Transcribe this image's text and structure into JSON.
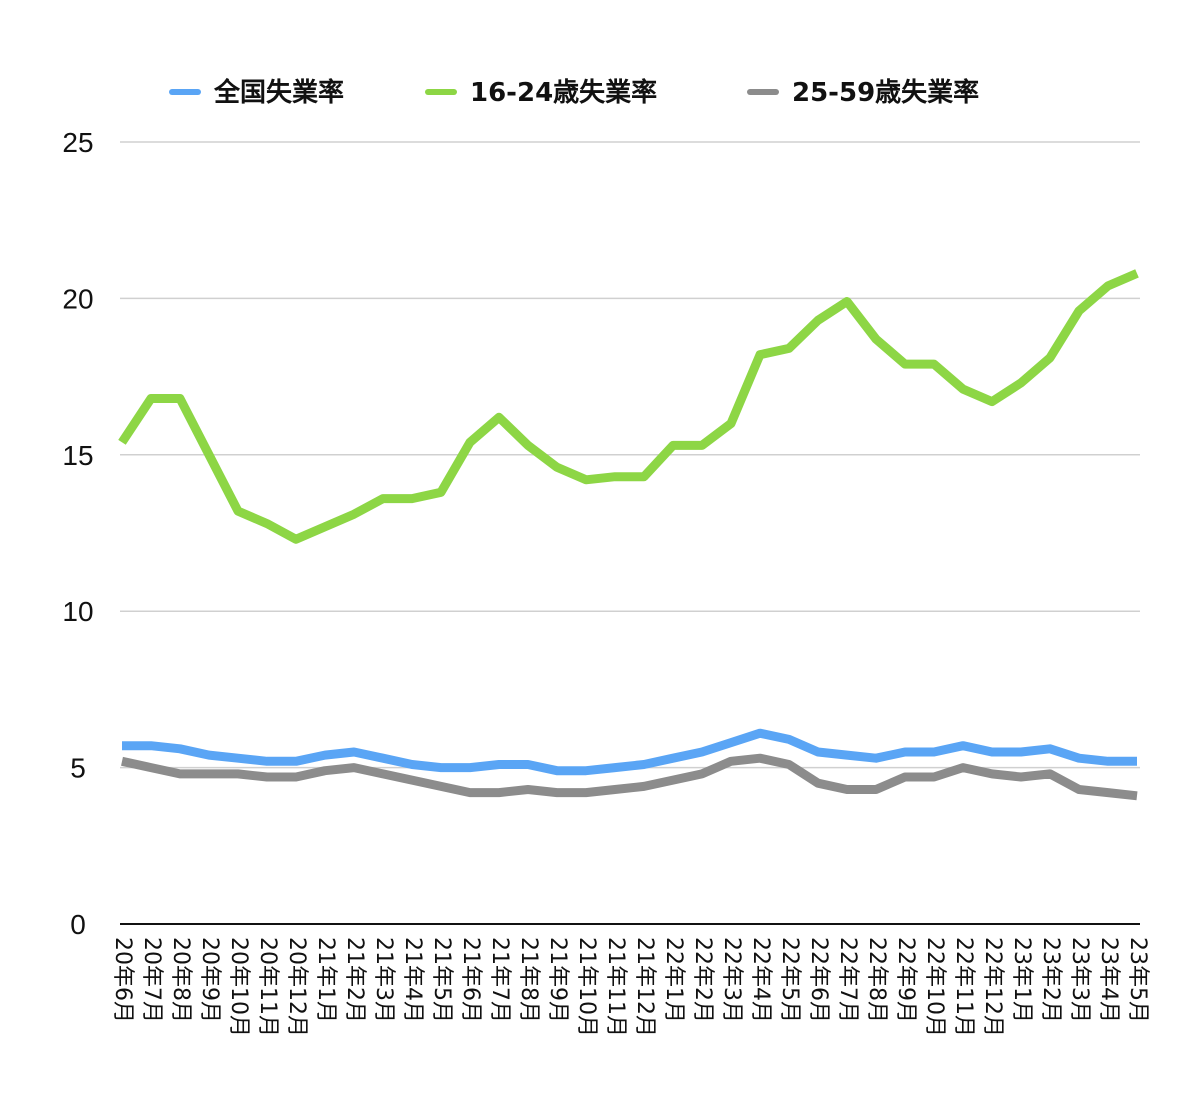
{
  "chart_data": {
    "type": "line",
    "categories": [
      "20年6月",
      "20年7月",
      "20年8月",
      "20年9月",
      "20年10月",
      "20年11月",
      "20年12月",
      "21年1月",
      "21年2月",
      "21年3月",
      "21年4月",
      "21年5月",
      "21年6月",
      "21年7月",
      "21年8月",
      "21年9月",
      "21年10月",
      "21年11月",
      "21年12月",
      "22年1月",
      "22年2月",
      "22年3月",
      "22年4月",
      "22年5月",
      "22年6月",
      "22年7月",
      "22年8月",
      "22年9月",
      "22年10月",
      "22年11月",
      "22年12月",
      "23年1月",
      "23年2月",
      "23年3月",
      "23年4月",
      "23年5月"
    ],
    "series": [
      {
        "name": "全国失業率",
        "color": "#5aa5f5",
        "values": [
          5.7,
          5.7,
          5.6,
          5.4,
          5.3,
          5.2,
          5.2,
          5.4,
          5.5,
          5.3,
          5.1,
          5.0,
          5.0,
          5.1,
          5.1,
          4.9,
          4.9,
          5.0,
          5.1,
          5.3,
          5.5,
          5.8,
          6.1,
          5.9,
          5.5,
          5.4,
          5.3,
          5.5,
          5.5,
          5.7,
          5.5,
          5.5,
          5.6,
          5.3,
          5.2,
          5.2
        ]
      },
      {
        "name": "16-24歳失業率",
        "color": "#8dd645",
        "values": [
          15.4,
          16.8,
          16.8,
          15.0,
          13.2,
          12.8,
          12.3,
          12.7,
          13.1,
          13.6,
          13.6,
          13.8,
          15.4,
          16.2,
          15.3,
          14.6,
          14.2,
          14.3,
          14.3,
          15.3,
          15.3,
          16.0,
          18.2,
          18.4,
          19.3,
          19.9,
          18.7,
          17.9,
          17.9,
          17.1,
          16.7,
          17.3,
          18.1,
          19.6,
          20.4,
          20.8
        ]
      },
      {
        "name": "25-59歳失業率",
        "color": "#8c8c8c",
        "values": [
          5.2,
          5.0,
          4.8,
          4.8,
          4.8,
          4.7,
          4.7,
          4.9,
          5.0,
          4.8,
          4.6,
          4.4,
          4.2,
          4.2,
          4.3,
          4.2,
          4.2,
          4.3,
          4.4,
          4.6,
          4.8,
          5.2,
          5.3,
          5.1,
          4.5,
          4.3,
          4.3,
          4.7,
          4.7,
          5.0,
          4.8,
          4.7,
          4.8,
          4.3,
          4.2,
          4.1
        ]
      }
    ],
    "y_ticks": [
      "0",
      "5",
      "10",
      "15",
      "20",
      "25"
    ],
    "ylim": [
      0,
      25
    ],
    "grid": true,
    "legend_position": "top"
  }
}
